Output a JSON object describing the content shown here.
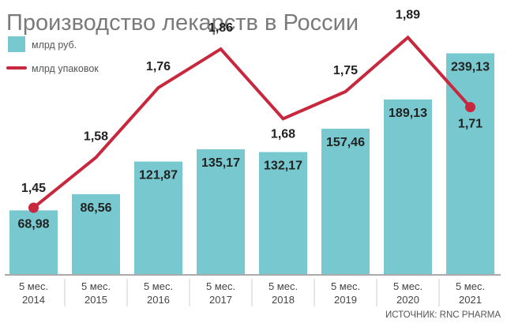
{
  "title": "Производство лекарств в России",
  "source": "ИСТОЧНИК: RNC PHARMA",
  "colors": {
    "bar": "#78c8cf",
    "line": "#c8283e",
    "axis": "#555555",
    "divider": "#cccccc"
  },
  "chart_data": {
    "type": "bar",
    "title": "Производство лекарств в России",
    "categories": [
      [
        "5 мес.",
        "2014"
      ],
      [
        "5 мес.",
        "2015"
      ],
      [
        "5 мес.",
        "2016"
      ],
      [
        "5 мес.",
        "2017"
      ],
      [
        "5 мес.",
        "2018"
      ],
      [
        "5 мес.",
        "2019"
      ],
      [
        "5 мес.",
        "2020"
      ],
      [
        "5 мес.",
        "2021"
      ]
    ],
    "series": [
      {
        "name": "млрд руб.",
        "type": "bar",
        "values": [
          68.98,
          86.56,
          121.87,
          135.17,
          132.17,
          157.46,
          189.13,
          239.13
        ],
        "labels": [
          "68,98",
          "86,56",
          "121,87",
          "135,17",
          "132,17",
          "157,46",
          "189,13",
          "239,13"
        ]
      },
      {
        "name": "млрд упаковок",
        "type": "line",
        "values": [
          1.45,
          1.58,
          1.76,
          1.86,
          1.68,
          1.75,
          1.89,
          1.71
        ],
        "labels": [
          "1,45",
          "1,58",
          "1,76",
          "1,86",
          "1,68",
          "1,75",
          "1,89",
          "1,71"
        ]
      }
    ],
    "legend": "top-left",
    "grid": false
  }
}
